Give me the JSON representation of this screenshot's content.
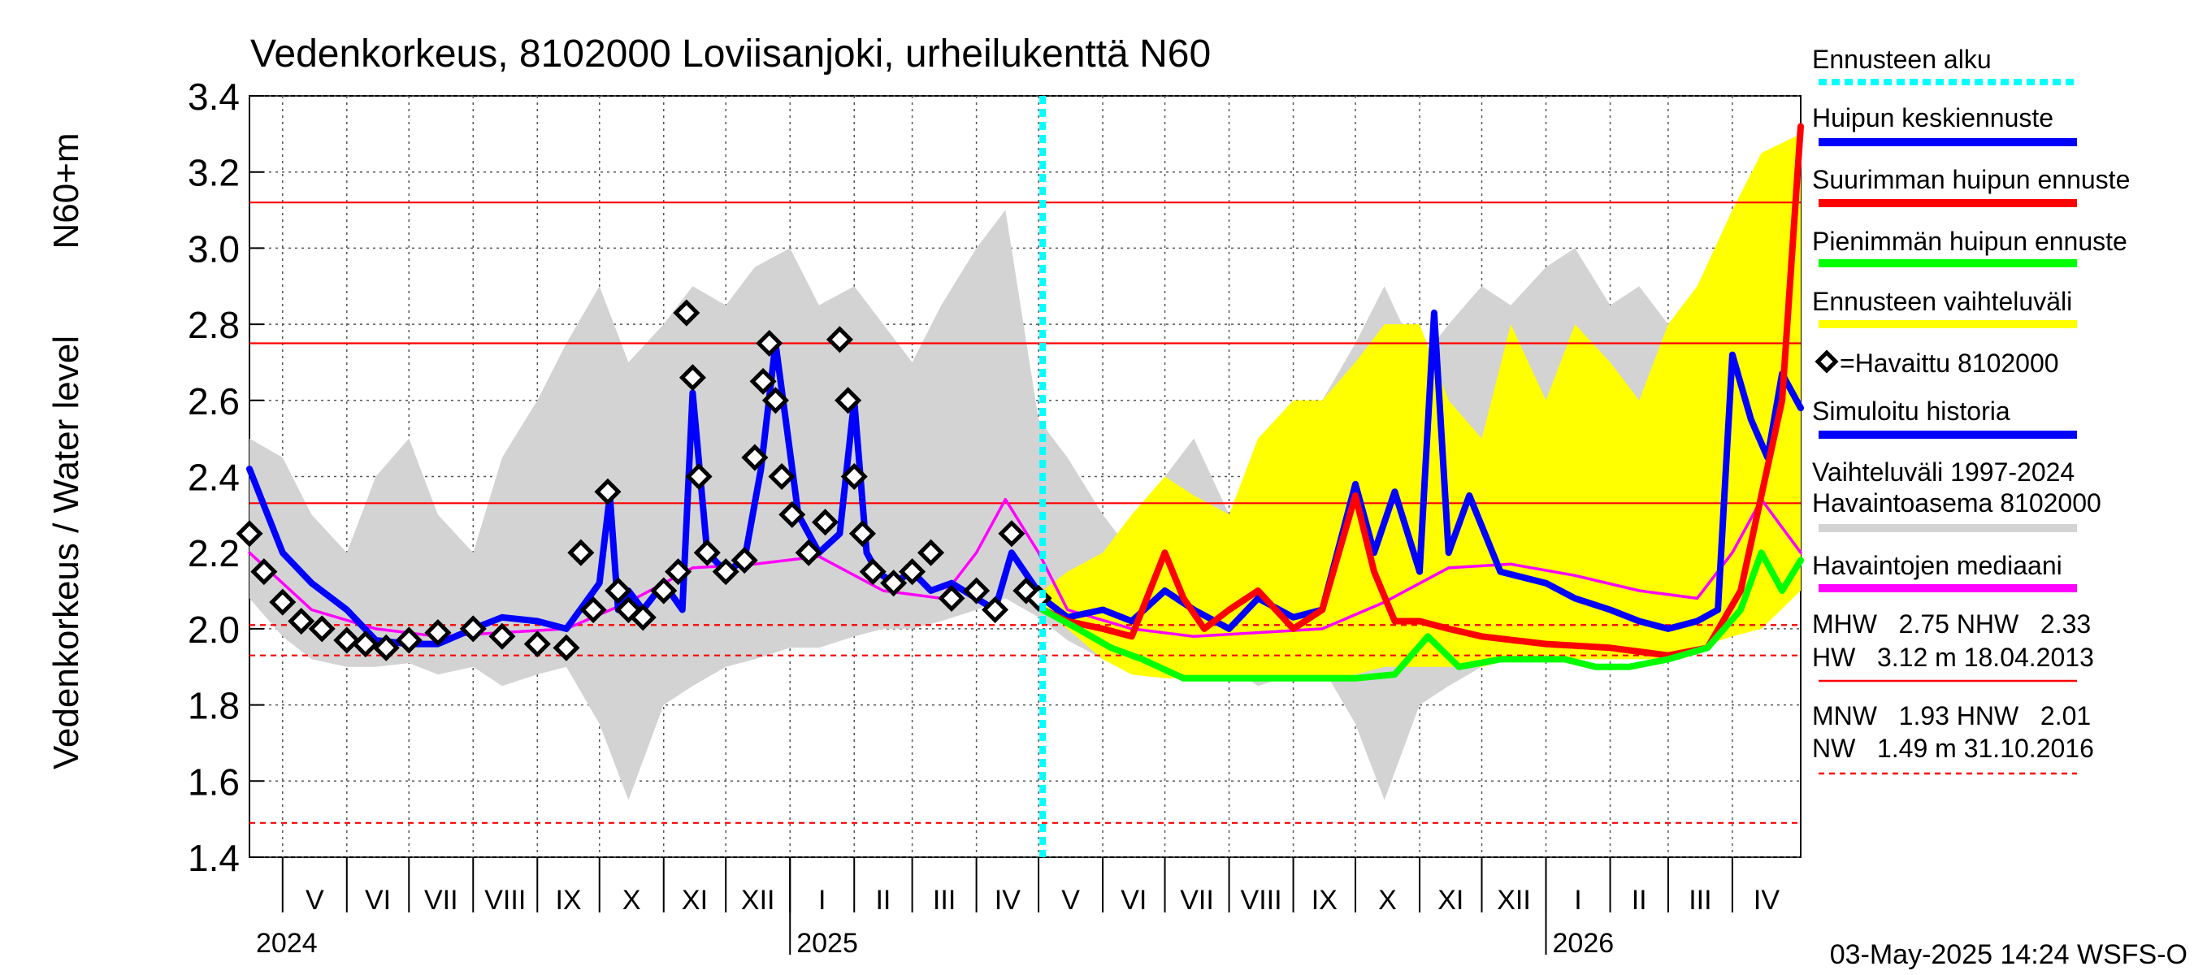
{
  "chart_data": {
    "type": "line",
    "title": "Vedenkorkeus, 8102000 Loviisanjoki, urheilukenttä N60",
    "ylabel": "Vedenkorkeus / Water level",
    "ylabel_unit": "N60+m",
    "ylim": [
      1.4,
      3.4
    ],
    "yticks": [
      "1.4",
      "1.6",
      "1.8",
      "2.0",
      "2.2",
      "2.4",
      "2.6",
      "2.8",
      "3.0",
      "3.2",
      "3.4"
    ],
    "x_range": [
      "2024-04-15",
      "2026-05-04"
    ],
    "forecast_start": "2025-05-03",
    "grid": true,
    "months": [
      {
        "label": "V",
        "start": "2024-05-01"
      },
      {
        "label": "VI",
        "start": "2024-06-01"
      },
      {
        "label": "VII",
        "start": "2024-07-01"
      },
      {
        "label": "VIII",
        "start": "2024-08-01"
      },
      {
        "label": "IX",
        "start": "2024-09-01"
      },
      {
        "label": "X",
        "start": "2024-10-01"
      },
      {
        "label": "XI",
        "start": "2024-11-01"
      },
      {
        "label": "XII",
        "start": "2024-12-01"
      },
      {
        "label": "I",
        "start": "2025-01-01"
      },
      {
        "label": "II",
        "start": "2025-02-01"
      },
      {
        "label": "III",
        "start": "2025-03-01"
      },
      {
        "label": "IV",
        "start": "2025-04-01"
      },
      {
        "label": "V",
        "start": "2025-05-01"
      },
      {
        "label": "VI",
        "start": "2025-06-01"
      },
      {
        "label": "VII",
        "start": "2025-07-01"
      },
      {
        "label": "VIII",
        "start": "2025-08-01"
      },
      {
        "label": "IX",
        "start": "2025-09-01"
      },
      {
        "label": "X",
        "start": "2025-10-01"
      },
      {
        "label": "XI",
        "start": "2025-11-01"
      },
      {
        "label": "XII",
        "start": "2025-12-01"
      },
      {
        "label": "I",
        "start": "2026-01-01"
      },
      {
        "label": "II",
        "start": "2026-02-01"
      },
      {
        "label": "III",
        "start": "2026-03-01"
      },
      {
        "label": "IV",
        "start": "2026-04-01"
      }
    ],
    "years": [
      {
        "label": "2024",
        "date": "2024-04-15"
      },
      {
        "label": "2025",
        "date": "2025-01-01"
      },
      {
        "label": "2026",
        "date": "2026-01-01"
      }
    ],
    "reference_lines": [
      {
        "name": "HW",
        "value": 3.12,
        "style": "solid"
      },
      {
        "name": "MHW",
        "value": 2.75,
        "style": "solid"
      },
      {
        "name": "NHW",
        "value": 2.33,
        "style": "solid"
      },
      {
        "name": "HNW",
        "value": 2.01,
        "style": "dashed"
      },
      {
        "name": "MNW",
        "value": 1.93,
        "style": "dashed"
      },
      {
        "name": "NW",
        "value": 1.49,
        "style": "dashed"
      }
    ],
    "series": [
      {
        "name": "Vaihteluväli 1997-2024 Havaintoasema 8102000",
        "kind": "band",
        "color": "#d3d3d3",
        "x": [
          "2024-04-15",
          "2024-05-01",
          "2024-05-15",
          "2024-06-01",
          "2024-06-15",
          "2024-07-01",
          "2024-07-15",
          "2024-08-01",
          "2024-08-15",
          "2024-09-01",
          "2024-09-15",
          "2024-10-01",
          "2024-10-15",
          "2024-11-01",
          "2024-11-15",
          "2024-12-01",
          "2024-12-15",
          "2025-01-01",
          "2025-01-15",
          "2025-02-01",
          "2025-02-15",
          "2025-03-01",
          "2025-03-15",
          "2025-04-01",
          "2025-04-15",
          "2025-05-01",
          "2025-05-15",
          "2025-06-01",
          "2025-06-15",
          "2025-07-01",
          "2025-07-15",
          "2025-08-01",
          "2025-08-15",
          "2025-09-01",
          "2025-09-15",
          "2025-10-01",
          "2025-10-15",
          "2025-11-01",
          "2025-11-15",
          "2025-12-01",
          "2025-12-15",
          "2026-01-01",
          "2026-01-15",
          "2026-02-01",
          "2026-02-15",
          "2026-03-01",
          "2026-03-15",
          "2026-04-01",
          "2026-04-15",
          "2026-05-04"
        ],
        "low": [
          2.08,
          1.98,
          1.92,
          1.9,
          1.9,
          1.91,
          1.88,
          1.9,
          1.85,
          1.88,
          1.9,
          1.75,
          1.55,
          1.8,
          1.85,
          1.9,
          1.92,
          1.95,
          1.95,
          1.98,
          2.0,
          2.0,
          2.02,
          2.05,
          2.08,
          2.03,
          1.97,
          1.92,
          1.9,
          1.91,
          1.88,
          1.9,
          1.85,
          1.88,
          1.9,
          1.75,
          1.55,
          1.8,
          1.85,
          1.9,
          1.92,
          1.95,
          1.95,
          1.98,
          2.0,
          2.0,
          2.02,
          2.05,
          2.08,
          2.1
        ],
        "high": [
          2.5,
          2.45,
          2.3,
          2.2,
          2.4,
          2.5,
          2.3,
          2.2,
          2.45,
          2.6,
          2.75,
          2.9,
          2.7,
          2.8,
          2.9,
          2.85,
          2.95,
          3.0,
          2.85,
          2.9,
          2.8,
          2.7,
          2.85,
          3.0,
          3.1,
          2.55,
          2.45,
          2.3,
          2.2,
          2.4,
          2.5,
          2.3,
          2.2,
          2.45,
          2.6,
          2.75,
          2.9,
          2.7,
          2.8,
          2.9,
          2.85,
          2.95,
          3.0,
          2.85,
          2.9,
          2.8,
          2.7,
          2.85,
          3.0,
          3.1
        ]
      },
      {
        "name": "Ennusteen vaihteluväli",
        "kind": "band",
        "color": "#ffff00",
        "x": [
          "2025-05-03",
          "2025-05-15",
          "2025-06-01",
          "2025-06-15",
          "2025-07-01",
          "2025-07-15",
          "2025-08-01",
          "2025-08-15",
          "2025-09-01",
          "2025-09-15",
          "2025-10-01",
          "2025-10-15",
          "2025-11-01",
          "2025-11-15",
          "2025-12-01",
          "2025-12-15",
          "2026-01-01",
          "2026-01-15",
          "2026-02-01",
          "2026-02-15",
          "2026-03-01",
          "2026-03-15",
          "2026-04-01",
          "2026-04-15",
          "2026-05-04"
        ],
        "low": [
          2.05,
          2.0,
          1.92,
          1.88,
          1.87,
          1.87,
          1.87,
          1.87,
          1.87,
          1.87,
          1.88,
          1.9,
          1.9,
          1.9,
          1.9,
          1.92,
          1.93,
          1.92,
          1.92,
          1.92,
          1.92,
          1.95,
          1.98,
          2.0,
          2.1
        ],
        "high": [
          2.1,
          2.15,
          2.2,
          2.3,
          2.4,
          2.35,
          2.3,
          2.5,
          2.6,
          2.6,
          2.7,
          2.8,
          2.8,
          2.6,
          2.5,
          2.8,
          2.6,
          2.8,
          2.7,
          2.6,
          2.8,
          2.9,
          3.1,
          3.25,
          3.3
        ]
      },
      {
        "name": "Havaintojen mediaani",
        "kind": "line",
        "color": "#ff00ff",
        "x": [
          "2024-04-15",
          "2024-05-15",
          "2024-06-15",
          "2024-07-15",
          "2024-08-15",
          "2024-09-15",
          "2024-10-15",
          "2024-11-15",
          "2024-12-15",
          "2025-01-15",
          "2025-02-15",
          "2025-03-15",
          "2025-04-01",
          "2025-04-15",
          "2025-05-01",
          "2025-05-15",
          "2025-06-15",
          "2025-07-15",
          "2025-08-15",
          "2025-09-15",
          "2025-10-15",
          "2025-11-15",
          "2025-12-15",
          "2026-01-15",
          "2026-02-15",
          "2026-03-15",
          "2026-04-01",
          "2026-04-15",
          "2026-05-04"
        ],
        "values": [
          2.2,
          2.05,
          2.0,
          1.98,
          1.99,
          2.0,
          2.07,
          2.16,
          2.17,
          2.19,
          2.1,
          2.08,
          2.2,
          2.34,
          2.2,
          2.05,
          2.0,
          1.98,
          1.99,
          2.0,
          2.07,
          2.16,
          2.17,
          2.14,
          2.1,
          2.08,
          2.2,
          2.34,
          2.2
        ]
      },
      {
        "name": "Simuloitu historia",
        "kind": "line",
        "color": "#0000ff",
        "x": [
          "2024-04-15",
          "2024-05-01",
          "2024-05-15",
          "2024-06-01",
          "2024-06-15",
          "2024-07-01",
          "2024-07-15",
          "2024-08-01",
          "2024-08-15",
          "2024-09-01",
          "2024-09-15",
          "2024-10-01",
          "2024-10-06",
          "2024-10-10",
          "2024-10-15",
          "2024-10-22",
          "2024-11-01",
          "2024-11-10",
          "2024-11-15",
          "2024-11-22",
          "2024-12-01",
          "2024-12-10",
          "2024-12-18",
          "2024-12-25",
          "2025-01-05",
          "2025-01-15",
          "2025-01-25",
          "2025-02-01",
          "2025-02-07",
          "2025-02-12",
          "2025-02-20",
          "2025-03-01",
          "2025-03-10",
          "2025-03-20",
          "2025-04-01",
          "2025-04-10",
          "2025-04-18",
          "2025-05-03"
        ],
        "values": [
          2.42,
          2.2,
          2.12,
          2.05,
          1.97,
          1.96,
          1.96,
          2.0,
          2.03,
          2.02,
          2.0,
          2.12,
          2.35,
          2.05,
          2.1,
          2.05,
          2.12,
          2.05,
          2.62,
          2.2,
          2.15,
          2.18,
          2.42,
          2.75,
          2.3,
          2.2,
          2.25,
          2.6,
          2.2,
          2.15,
          2.12,
          2.15,
          2.1,
          2.12,
          2.08,
          2.05,
          2.2,
          2.08
        ]
      },
      {
        "name": "Huipun keskiennuste",
        "kind": "line",
        "color": "#0000ff",
        "x": [
          "2025-05-03",
          "2025-05-15",
          "2025-06-01",
          "2025-06-15",
          "2025-07-01",
          "2025-07-15",
          "2025-08-01",
          "2025-08-15",
          "2025-09-01",
          "2025-09-15",
          "2025-10-01",
          "2025-10-10",
          "2025-10-20",
          "2025-11-01",
          "2025-11-08",
          "2025-11-15",
          "2025-11-25",
          "2025-12-10",
          "2026-01-01",
          "2026-01-15",
          "2026-02-01",
          "2026-02-15",
          "2026-03-01",
          "2026-03-15",
          "2026-03-25",
          "2026-04-01",
          "2026-04-10",
          "2026-04-18",
          "2026-04-25",
          "2026-05-04"
        ],
        "values": [
          2.08,
          2.03,
          2.05,
          2.02,
          2.1,
          2.05,
          2.0,
          2.08,
          2.03,
          2.05,
          2.38,
          2.2,
          2.36,
          2.15,
          2.83,
          2.2,
          2.35,
          2.15,
          2.12,
          2.08,
          2.05,
          2.02,
          2.0,
          2.02,
          2.05,
          2.72,
          2.55,
          2.45,
          2.67,
          2.58
        ]
      },
      {
        "name": "Suurimman huipun ennuste",
        "kind": "line",
        "color": "#ff0000",
        "x": [
          "2025-05-03",
          "2025-05-15",
          "2025-06-01",
          "2025-06-15",
          "2025-07-01",
          "2025-07-10",
          "2025-07-20",
          "2025-08-01",
          "2025-08-15",
          "2025-09-01",
          "2025-09-15",
          "2025-10-01",
          "2025-10-10",
          "2025-10-20",
          "2025-11-01",
          "2025-11-15",
          "2025-12-01",
          "2026-01-01",
          "2026-02-01",
          "2026-03-01",
          "2026-03-20",
          "2026-04-05",
          "2026-04-15",
          "2026-04-25",
          "2026-05-04"
        ],
        "values": [
          2.05,
          2.02,
          2.0,
          1.98,
          2.2,
          2.08,
          2.0,
          2.05,
          2.1,
          2.0,
          2.05,
          2.35,
          2.15,
          2.02,
          2.02,
          2.0,
          1.98,
          1.96,
          1.95,
          1.93,
          1.95,
          2.1,
          2.35,
          2.6,
          3.32
        ]
      },
      {
        "name": "Pienimmän huipun ennuste",
        "kind": "line",
        "color": "#00ff00",
        "x": [
          "2025-05-03",
          "2025-05-20",
          "2025-06-05",
          "2025-06-20",
          "2025-07-10",
          "2025-08-01",
          "2025-09-01",
          "2025-10-01",
          "2025-10-20",
          "2025-11-05",
          "2025-11-20",
          "2025-12-10",
          "2026-01-10",
          "2026-01-25",
          "2026-02-10",
          "2026-03-01",
          "2026-03-20",
          "2026-04-05",
          "2026-04-15",
          "2026-04-25",
          "2026-05-04"
        ],
        "values": [
          2.05,
          2.0,
          1.95,
          1.92,
          1.87,
          1.87,
          1.87,
          1.87,
          1.88,
          1.98,
          1.9,
          1.92,
          1.92,
          1.9,
          1.9,
          1.92,
          1.95,
          2.05,
          2.2,
          2.1,
          2.18
        ]
      },
      {
        "name": "=Havaittu 8102000",
        "kind": "markers",
        "color": "#000000",
        "x": [
          "2024-04-15",
          "2024-04-22",
          "2024-05-01",
          "2024-05-10",
          "2024-05-20",
          "2024-06-01",
          "2024-06-10",
          "2024-06-20",
          "2024-07-01",
          "2024-07-15",
          "2024-08-01",
          "2024-08-15",
          "2024-09-01",
          "2024-09-15",
          "2024-09-22",
          "2024-09-28",
          "2024-10-05",
          "2024-10-10",
          "2024-10-15",
          "2024-10-22",
          "2024-11-01",
          "2024-11-08",
          "2024-11-12",
          "2024-11-15",
          "2024-11-18",
          "2024-11-22",
          "2024-12-01",
          "2024-12-10",
          "2024-12-15",
          "2024-12-19",
          "2024-12-22",
          "2024-12-25",
          "2024-12-28",
          "2025-01-02",
          "2025-01-10",
          "2025-01-18",
          "2025-01-25",
          "2025-01-29",
          "2025-02-01",
          "2025-02-05",
          "2025-02-10",
          "2025-02-20",
          "2025-03-01",
          "2025-03-10",
          "2025-03-20",
          "2025-04-01",
          "2025-04-10",
          "2025-04-18",
          "2025-04-25",
          "2025-05-01"
        ],
        "values": [
          2.25,
          2.15,
          2.07,
          2.02,
          2.0,
          1.97,
          1.96,
          1.95,
          1.97,
          1.99,
          2.0,
          1.98,
          1.96,
          1.95,
          2.2,
          2.05,
          2.36,
          2.1,
          2.05,
          2.03,
          2.1,
          2.15,
          2.83,
          2.66,
          2.4,
          2.2,
          2.15,
          2.18,
          2.45,
          2.65,
          2.75,
          2.6,
          2.4,
          2.3,
          2.2,
          2.28,
          2.76,
          2.6,
          2.4,
          2.25,
          2.15,
          2.12,
          2.15,
          2.2,
          2.08,
          2.1,
          2.05,
          2.25,
          2.1,
          2.08
        ]
      }
    ],
    "legend": [
      {
        "label": "Ennusteen alku",
        "color": "#00ffff",
        "style": "dotted"
      },
      {
        "label": "Huipun keskiennuste",
        "color": "#0000ff",
        "style": "solid"
      },
      {
        "label": "Suurimman huipun ennuste",
        "color": "#ff0000",
        "style": "solid"
      },
      {
        "label": "Pienimmän huipun ennuste",
        "color": "#00ff00",
        "style": "solid"
      },
      {
        "label": "Ennusteen vaihteluväli",
        "color": "#ffff00",
        "style": "solid"
      },
      {
        "label": "=Havaittu 8102000",
        "color": "#000000",
        "style": "marker"
      },
      {
        "label": "Simuloitu historia",
        "color": "#0000ff",
        "style": "solid"
      },
      {
        "label": "Vaihteluväli 1997-2024",
        "label2": " Havaintoasema 8102000",
        "color": "#d3d3d3",
        "style": "solid"
      },
      {
        "label": "Havaintojen mediaani",
        "color": "#ff00ff",
        "style": "solid"
      }
    ],
    "stats": {
      "block1": {
        "line1": "MHW   2.75 NHW   2.33",
        "line2": "HW   3.12 m 18.04.2013",
        "rule_style": "solid"
      },
      "block2": {
        "line1": "MNW   1.93 HNW   2.01",
        "line2": "NW   1.49 m 31.10.2016",
        "rule_style": "dashed"
      }
    },
    "footer": "03-May-2025 14:24 WSFS-O"
  }
}
